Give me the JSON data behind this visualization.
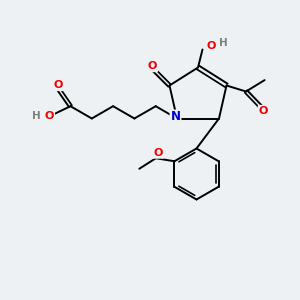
{
  "bg_color": "#edf1f3",
  "atom_colors": {
    "C": "#000000",
    "O": "#ee0000",
    "N": "#0000cc",
    "H": "#808080"
  },
  "bond_color": "#000000",
  "bond_width": 1.4
}
